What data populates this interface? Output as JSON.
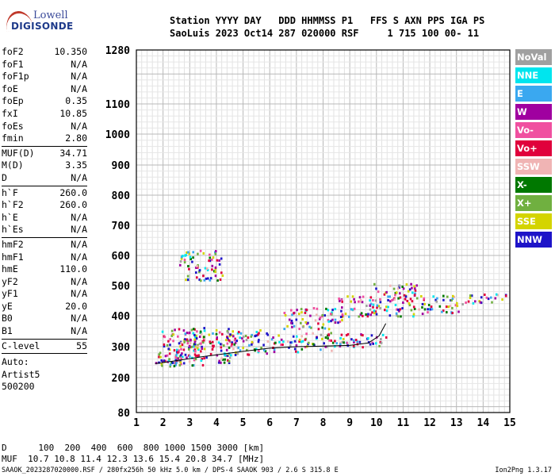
{
  "logo": {
    "line1": "Lowell",
    "line2": "DIGISONDE"
  },
  "header": {
    "line1": "Station YYYY DAY   DDD HHMMSS P1   FFS S AXN PPS IGA PS",
    "line2": "SaoLuis 2023 Oct14 287 020000 RSF     1 715 100 00- 11"
  },
  "params": [
    {
      "k": "foF2",
      "v": "10.350"
    },
    {
      "k": "foF1",
      "v": "N/A"
    },
    {
      "k": "foF1p",
      "v": "N/A"
    },
    {
      "k": "foE",
      "v": "N/A"
    },
    {
      "k": "foEp",
      "v": "0.35"
    },
    {
      "k": "fxI",
      "v": "10.85"
    },
    {
      "k": "foEs",
      "v": "N/A"
    },
    {
      "k": "fmin",
      "v": "2.80"
    },
    {
      "k": "MUF(D)",
      "v": "34.71"
    },
    {
      "k": "M(D)",
      "v": "3.35"
    },
    {
      "k": "D",
      "v": "N/A"
    },
    {
      "k": "h`F",
      "v": "260.0"
    },
    {
      "k": "h`F2",
      "v": "260.0"
    },
    {
      "k": "h`E",
      "v": "N/A"
    },
    {
      "k": "h`Es",
      "v": "N/A"
    },
    {
      "k": "hmF2",
      "v": "N/A"
    },
    {
      "k": "hmF1",
      "v": "N/A"
    },
    {
      "k": "hmE",
      "v": "110.0"
    },
    {
      "k": "yF2",
      "v": "N/A"
    },
    {
      "k": "yF1",
      "v": "N/A"
    },
    {
      "k": "yE",
      "v": "20.0"
    },
    {
      "k": "B0",
      "v": "N/A"
    },
    {
      "k": "B1",
      "v": "N/A"
    },
    {
      "k": "C-level",
      "v": "55"
    }
  ],
  "auto": [
    "Auto:",
    "Artist5",
    "500200"
  ],
  "legend": [
    {
      "label": "NoVal",
      "color": "#a0a0a0"
    },
    {
      "label": "NNE",
      "color": "#00e5ee"
    },
    {
      "label": "E",
      "color": "#3aa8f0"
    },
    {
      "label": "W",
      "color": "#a000a0"
    },
    {
      "label": "Vo-",
      "color": "#f050a0"
    },
    {
      "label": "Vo+",
      "color": "#e0003c"
    },
    {
      "label": "SSW",
      "color": "#f0b4b4"
    },
    {
      "label": "X-",
      "color": "#007800"
    },
    {
      "label": "X+",
      "color": "#70b040"
    },
    {
      "label": "SSE",
      "color": "#d4d400"
    },
    {
      "label": "NNW",
      "color": "#1e14c8"
    }
  ],
  "bottom": {
    "line1": "D      100  200  400  600  800 1000 1500 3000 [km]",
    "line2": "MUF  10.7 10.8 11.4 12.3 13.6 15.4 20.8 34.7 [MHz]"
  },
  "footer": {
    "left": "SAAOK_2023287020000.RSF / 280fx256h 50 kHz 5.0 km / DPS-4 SAAOK 903 / 2.6 S 315.8 E",
    "right": "Ion2Png 1.3.17"
  },
  "chart_data": {
    "type": "scatter",
    "xlim": [
      1,
      15
    ],
    "ylim": [
      80,
      1280
    ],
    "x_ticks": [
      "1",
      "2",
      "3",
      "4",
      "5",
      "6",
      "7",
      "8",
      "9",
      "10",
      "11",
      "12",
      "13",
      "14",
      "15"
    ],
    "y_ticks": [
      {
        "v": 80,
        "label": "80"
      },
      {
        "v": 200,
        "label": "200"
      },
      {
        "v": 300,
        "label": "300"
      },
      {
        "v": 400,
        "label": "400"
      },
      {
        "v": 500,
        "label": "500"
      },
      {
        "v": 600,
        "label": "600"
      },
      {
        "v": 700,
        "label": "700"
      },
      {
        "v": 800,
        "label": "800"
      },
      {
        "v": 900,
        "label": "900"
      },
      {
        "v": 1000,
        "label": "1000"
      },
      {
        "v": 1100,
        "label": "1100"
      },
      {
        "v": 1280,
        "label": "1280"
      }
    ],
    "y_scale": "nonlinear",
    "grid": true,
    "clusters": [
      {
        "x": [
          1.7,
          2.6
        ],
        "y": [
          235,
          290
        ]
      },
      {
        "x": [
          1.8,
          3.5
        ],
        "y": [
          240,
          360
        ]
      },
      {
        "x": [
          2.5,
          4.6
        ],
        "y": [
          250,
          365
        ]
      },
      {
        "x": [
          4.3,
          6.0
        ],
        "y": [
          275,
          360
        ]
      },
      {
        "x": [
          6.0,
          7.2
        ],
        "y": [
          285,
          340
        ]
      },
      {
        "x": [
          7.2,
          9.0
        ],
        "y": [
          290,
          350
        ]
      },
      {
        "x": [
          9.0,
          10.4
        ],
        "y": [
          300,
          345
        ]
      },
      {
        "x": [
          2.6,
          4.2
        ],
        "y": [
          520,
          620
        ]
      },
      {
        "x": [
          6.5,
          8.7
        ],
        "y": [
          360,
          430
        ]
      },
      {
        "x": [
          8.5,
          9.8
        ],
        "y": [
          400,
          470
        ]
      },
      {
        "x": [
          9.8,
          11.6
        ],
        "y": [
          400,
          510
        ]
      },
      {
        "x": [
          11.6,
          13.2
        ],
        "y": [
          410,
          470
        ]
      },
      {
        "x": [
          13.3,
          14.9
        ],
        "y": [
          445,
          475
        ]
      }
    ],
    "trace": [
      {
        "x": 1.7,
        "y": 245
      },
      {
        "x": 2.5,
        "y": 255
      },
      {
        "x": 3.5,
        "y": 268
      },
      {
        "x": 5.0,
        "y": 285
      },
      {
        "x": 6.0,
        "y": 295
      },
      {
        "x": 7.0,
        "y": 300
      },
      {
        "x": 8.0,
        "y": 302
      },
      {
        "x": 9.0,
        "y": 304
      },
      {
        "x": 9.7,
        "y": 312
      },
      {
        "x": 10.1,
        "y": 335
      },
      {
        "x": 10.35,
        "y": 375
      }
    ]
  }
}
